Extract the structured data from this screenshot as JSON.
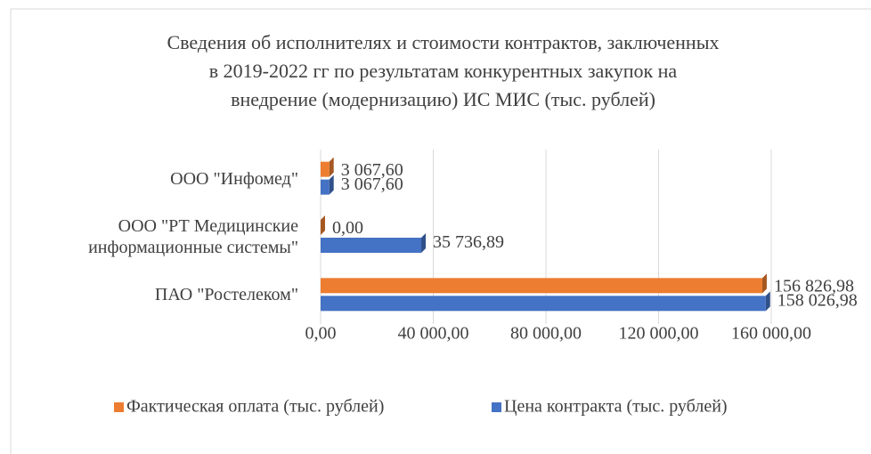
{
  "chart_data": {
    "type": "barh",
    "title": "Сведения об исполнителях и стоимости контрактов, заключенных\nв 2019-2022 гг по результатам конкурентных закупок на\nвнедрение (модернизацию) ИС МИС (тыс. рублей)",
    "categories": [
      "ООО \"Инфомед\"",
      "ООО \"РТ Медицинские информационные системы\"",
      "ПАО \"Ростелеком\""
    ],
    "series": [
      {
        "name": "Фактическая оплата (тыс. рублей)",
        "color": "#ED7D31",
        "values": [
          3067.6,
          0,
          156826.98
        ],
        "value_labels": [
          "3 067,60",
          "0,00",
          "156 826,98"
        ]
      },
      {
        "name": "Цена контракта (тыс. рублей)",
        "color": "#4472C4",
        "values": [
          3067.6,
          35736.89,
          158026.98
        ],
        "value_labels": [
          "3 067,60",
          "35 736,89",
          "158 026,98"
        ]
      }
    ],
    "xlim": [
      0,
      160000
    ],
    "xticks": [
      {
        "value": 0,
        "label": "0,00"
      },
      {
        "value": 40000,
        "label": "40 000,00"
      },
      {
        "value": 80000,
        "label": "80 000,00"
      },
      {
        "value": 120000,
        "label": "120 000,00"
      },
      {
        "value": 160000,
        "label": "160 000,00"
      }
    ],
    "grid": true
  }
}
